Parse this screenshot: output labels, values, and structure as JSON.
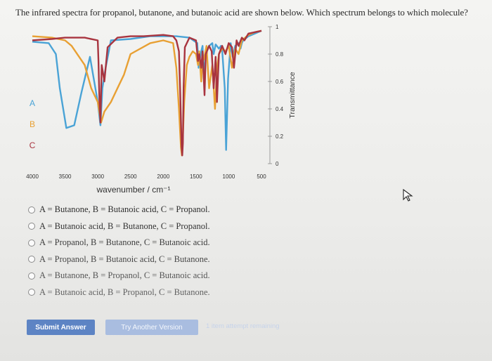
{
  "question": "The infrared spectra for propanol, butanone, and butanoic acid are shown below. Which spectrum belongs to which molecule?",
  "chart_data": {
    "type": "line",
    "xlabel": "wavenumber / cm⁻¹",
    "ylabel": "Transmittance",
    "xlim": [
      4000,
      500
    ],
    "ylim": [
      0,
      1
    ],
    "x_ticks": [
      "4000",
      "3500",
      "3000",
      "2500",
      "2000",
      "1500",
      "1000",
      "500"
    ],
    "y_ticks": [
      "0",
      "0.2",
      "0.4",
      "0.6",
      "0.8",
      "1"
    ],
    "series_labels": [
      "A",
      "B",
      "C"
    ],
    "series": [
      {
        "name": "A",
        "color": "#4aa3d6",
        "x": [
          4000,
          3750,
          3640,
          3580,
          3480,
          3360,
          3250,
          3120,
          3000,
          2960,
          2930,
          2880,
          2800,
          2500,
          2200,
          2000,
          1800,
          1600,
          1480,
          1460,
          1430,
          1400,
          1380,
          1350,
          1300,
          1250,
          1230,
          1200,
          1150,
          1120,
          1100,
          1060,
          1040,
          1010,
          970,
          940,
          900,
          850,
          820,
          800,
          780,
          700,
          600,
          500
        ],
        "y": [
          0.89,
          0.88,
          0.8,
          0.55,
          0.26,
          0.28,
          0.52,
          0.78,
          0.45,
          0.28,
          0.55,
          0.7,
          0.9,
          0.91,
          0.93,
          0.93,
          0.93,
          0.92,
          0.88,
          0.7,
          0.8,
          0.86,
          0.62,
          0.82,
          0.86,
          0.88,
          0.8,
          0.87,
          0.84,
          0.86,
          0.83,
          0.55,
          0.1,
          0.62,
          0.88,
          0.78,
          0.86,
          0.88,
          0.84,
          0.88,
          0.9,
          0.93,
          0.95,
          0.97
        ]
      },
      {
        "name": "B",
        "color": "#e8a033",
        "x": [
          4000,
          3700,
          3500,
          3400,
          3200,
          3100,
          3000,
          2950,
          2900,
          2800,
          2700,
          2600,
          2500,
          2200,
          2000,
          1850,
          1800,
          1760,
          1730,
          1715,
          1700,
          1680,
          1640,
          1600,
          1550,
          1500,
          1470,
          1450,
          1420,
          1400,
          1380,
          1340,
          1300,
          1250,
          1210,
          1180,
          1150,
          1100,
          1050,
          1000,
          950,
          900,
          850,
          800,
          700,
          600,
          500
        ],
        "y": [
          0.93,
          0.92,
          0.9,
          0.86,
          0.72,
          0.55,
          0.45,
          0.3,
          0.38,
          0.45,
          0.55,
          0.65,
          0.8,
          0.88,
          0.9,
          0.88,
          0.7,
          0.4,
          0.12,
          0.06,
          0.2,
          0.45,
          0.72,
          0.78,
          0.82,
          0.8,
          0.72,
          0.82,
          0.6,
          0.78,
          0.76,
          0.86,
          0.55,
          0.72,
          0.4,
          0.7,
          0.8,
          0.84,
          0.82,
          0.86,
          0.7,
          0.84,
          0.8,
          0.9,
          0.94,
          0.96,
          0.97
        ]
      },
      {
        "name": "C",
        "color": "#a8343f",
        "x": [
          4000,
          3700,
          3500,
          3200,
          3000,
          2990,
          2975,
          2960,
          2940,
          2900,
          2850,
          2700,
          2500,
          2300,
          2000,
          1850,
          1800,
          1760,
          1740,
          1720,
          1710,
          1700,
          1690,
          1670,
          1600,
          1500,
          1470,
          1450,
          1420,
          1400,
          1370,
          1350,
          1300,
          1260,
          1230,
          1200,
          1180,
          1150,
          1100,
          1050,
          1000,
          950,
          920,
          880,
          850,
          800,
          760,
          700,
          600,
          500
        ],
        "y": [
          0.9,
          0.91,
          0.92,
          0.92,
          0.9,
          0.75,
          0.45,
          0.3,
          0.72,
          0.6,
          0.85,
          0.92,
          0.93,
          0.93,
          0.94,
          0.93,
          0.9,
          0.82,
          0.5,
          0.12,
          0.06,
          0.15,
          0.55,
          0.85,
          0.92,
          0.9,
          0.75,
          0.8,
          0.7,
          0.82,
          0.5,
          0.8,
          0.86,
          0.82,
          0.55,
          0.78,
          0.45,
          0.8,
          0.86,
          0.8,
          0.88,
          0.85,
          0.7,
          0.9,
          0.86,
          0.92,
          0.9,
          0.95,
          0.96,
          0.97
        ]
      }
    ]
  },
  "options": [
    {
      "label": "A = Butanone, B = Butanoic acid, C = Propanol."
    },
    {
      "label": "A = Butanoic acid, B = Butanone, C = Propanol."
    },
    {
      "label": "A = Propanol, B = Butanone, C = Butanoic acid."
    },
    {
      "label": "A = Propanol, B = Butanoic acid, C = Butanone."
    },
    {
      "label": "A = Butanone, B = Propanol, C = Butanoic acid."
    },
    {
      "label": "A = Butanoic acid, B = Propanol, C = Butanone."
    }
  ],
  "option_colors": [
    "#2d2d2d",
    "#333333",
    "#3d3d3d",
    "#474747",
    "#555555",
    "#616161"
  ],
  "buttons": {
    "submit": "Submit Answer",
    "try_another": "Try Another Version",
    "attempts": "1 item attempt remaining"
  },
  "icons": {
    "cursor": "mouse-pointer-icon"
  }
}
